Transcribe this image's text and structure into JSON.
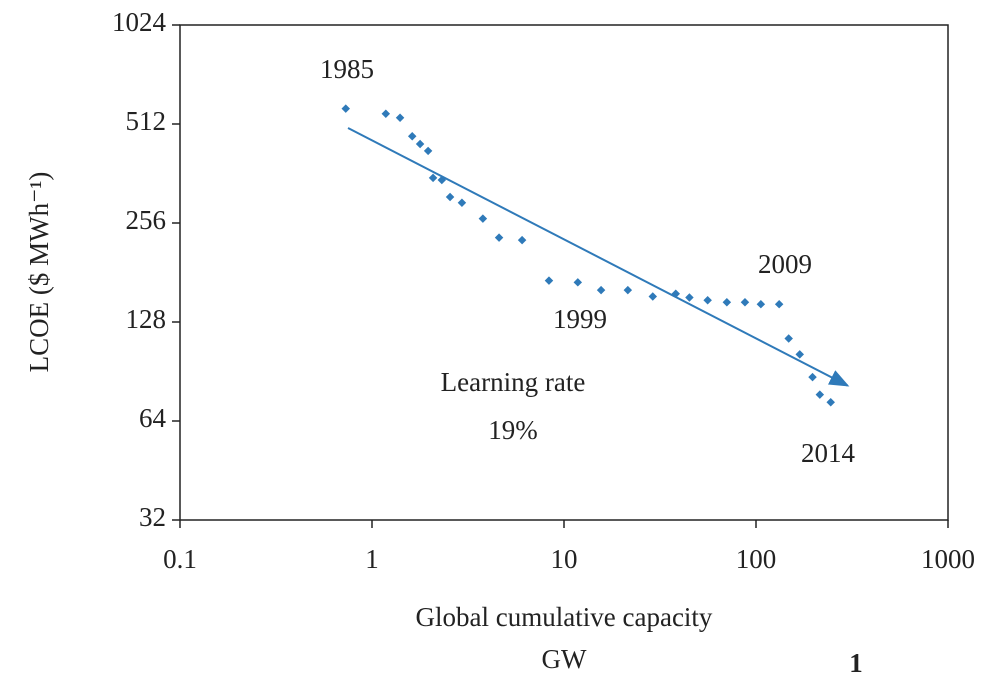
{
  "chart_data": {
    "type": "scatter",
    "log_x": true,
    "log_y": true,
    "grid": false,
    "color": "#2f7ab9",
    "ylabel": "LCOE ($ MWh⁻¹)",
    "xlabel": "Global cumulative capacity",
    "xunit": "GW",
    "xlim": [
      0.1,
      1000
    ],
    "xticks": [
      0.1,
      1,
      10,
      100,
      1000
    ],
    "ylim": [
      32,
      1024
    ],
    "yticks": [
      32,
      64,
      128,
      256,
      512,
      1024
    ],
    "x": [
      0.73,
      1.18,
      1.4,
      1.62,
      1.78,
      1.96,
      2.08,
      2.31,
      2.55,
      2.94,
      3.78,
      4.59,
      6.05,
      8.35,
      11.8,
      15.6,
      21.5,
      29,
      38.2,
      45,
      56,
      70.5,
      87.6,
      106,
      132,
      148,
      169,
      197,
      215,
      245
    ],
    "values": [
      570,
      550,
      535,
      470,
      445,
      424,
      351,
      346,
      307,
      295,
      264,
      231,
      227,
      171,
      169,
      160,
      160,
      153,
      156,
      152,
      149,
      147,
      147,
      145,
      145,
      114,
      102,
      87,
      77,
      73
    ],
    "trend_line": {
      "x": [
        0.75,
        300
      ],
      "y": [
        498,
        82
      ]
    },
    "annotations": [
      "1985",
      "1999",
      "2009",
      "2014",
      "Learning rate",
      "19%"
    ],
    "page_number": "1"
  }
}
